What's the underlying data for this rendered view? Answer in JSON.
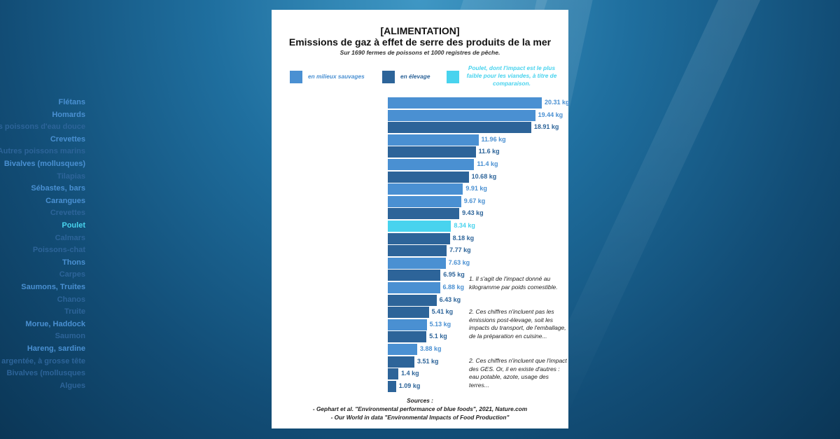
{
  "colors": {
    "wild": "#4a90d2",
    "farmed": "#2d6499",
    "chicken": "#48d3ee"
  },
  "chart_data": {
    "type": "bar",
    "orientation": "horizontal",
    "title": "[ALIMENTATION]",
    "subtitle_main": "Emissions de gaz à effet de serre des produits de la mer",
    "caption": "Sur 1690 fermes de poissons et 1000 registres de pêche.",
    "unit": "kg",
    "legend": [
      {
        "key": "wild",
        "label": "en milieux sauvages"
      },
      {
        "key": "farmed",
        "label": "en élevage"
      },
      {
        "key": "chicken",
        "label": "Poulet, dont l'impact est le plus faible pour les viandes, à titre de comparaison."
      }
    ],
    "xlim": [
      0,
      20.31
    ],
    "bars": [
      {
        "label": "Flétans",
        "value": 20.31,
        "value_label": "20.31 kg",
        "group": "wild"
      },
      {
        "label": "Homards",
        "value": 19.44,
        "value_label": "19.44 kg",
        "group": "wild"
      },
      {
        "label": "Autres poissons d'eau douce",
        "value": 18.91,
        "value_label": "18.91 kg",
        "group": "farmed"
      },
      {
        "label": "Crevettes",
        "value": 11.96,
        "value_label": "11.96 kg",
        "group": "wild"
      },
      {
        "label": "Autres poissons marins",
        "value": 11.6,
        "value_label": "11.6 kg",
        "group": "farmed"
      },
      {
        "label": "Bivalves (mollusques)",
        "value": 11.4,
        "value_label": "11.4 kg",
        "group": "wild"
      },
      {
        "label": "Tilapias",
        "value": 10.68,
        "value_label": "10.68 kg",
        "group": "farmed"
      },
      {
        "label": "Sébastes, bars",
        "value": 9.91,
        "value_label": "9.91 kg",
        "group": "wild"
      },
      {
        "label": "Carangues",
        "value": 9.67,
        "value_label": "9.67 kg",
        "group": "wild"
      },
      {
        "label": "Crevettes",
        "value": 9.43,
        "value_label": "9.43 kg",
        "group": "farmed"
      },
      {
        "label": "Poulet",
        "value": 8.34,
        "value_label": "8.34 kg",
        "group": "chicken"
      },
      {
        "label": "Calmars",
        "value": 8.18,
        "value_label": "8.18 kg",
        "group": "farmed"
      },
      {
        "label": "Poissons-chat",
        "value": 7.77,
        "value_label": "7.77 kg",
        "group": "farmed"
      },
      {
        "label": "Thons",
        "value": 7.63,
        "value_label": "7.63 kg",
        "group": "wild"
      },
      {
        "label": "Carpes",
        "value": 6.95,
        "value_label": "6.95 kg",
        "group": "farmed"
      },
      {
        "label": "Saumons, Truites",
        "value": 6.88,
        "value_label": "6.88 kg",
        "group": "wild"
      },
      {
        "label": "Chanos",
        "value": 6.43,
        "value_label": "6.43 kg",
        "group": "farmed"
      },
      {
        "label": "Truite",
        "value": 5.41,
        "value_label": "5.41 kg",
        "group": "farmed"
      },
      {
        "label": "Morue, Haddock",
        "value": 5.13,
        "value_label": "5.13 kg",
        "group": "wild"
      },
      {
        "label": "Saumon",
        "value": 5.1,
        "value_label": "5.1 kg",
        "group": "farmed"
      },
      {
        "label": "Hareng, sardine",
        "value": 3.88,
        "value_label": "3.88 kg",
        "group": "wild"
      },
      {
        "label": "Carpe argentée, à grosse tête",
        "value": 3.51,
        "value_label": "3.51 kg",
        "group": "farmed"
      },
      {
        "label": "Bivalves (mollusques",
        "value": 1.4,
        "value_label": "1.4 kg",
        "group": "farmed"
      },
      {
        "label": "Algues",
        "value": 1.09,
        "value_label": "1.09 kg",
        "group": "farmed"
      }
    ],
    "notes": [
      "1. Il s'agit de l'impact donné au kilogramme par poids comestible.",
      "2. Ces chiffres n'incluent pas les émissions post-élevage, soit les impacts du transport, de l'emballage, de la préparation en cuisine...",
      "2. Ces chiffres n'incluent que l'impact des GES. Or, il en existe d'autres : eau potable, azote, usage des terres..."
    ],
    "sources": [
      "Sources :",
      "- Gephart et al. \"Environmental performance of blue foods\", 2021, Nature.com",
      "- Our World in data \"Environmental Impacts of Food Production\""
    ]
  }
}
